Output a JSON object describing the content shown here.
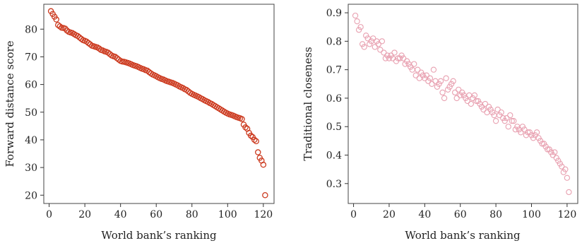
{
  "chart_data": [
    {
      "type": "scatter",
      "xlabel": "World bank’s ranking",
      "ylabel": "Forward distance score",
      "xlim": [
        -3,
        126
      ],
      "ylim": [
        17,
        89
      ],
      "xticks": [
        0,
        20,
        40,
        60,
        80,
        100,
        120
      ],
      "yticks": [
        20,
        30,
        40,
        50,
        60,
        70,
        80
      ],
      "color": "#cc3a1f",
      "grid": false,
      "legend": "none",
      "series": [
        {
          "x": [
            1,
            2,
            3,
            4,
            5,
            6,
            7,
            8,
            9,
            10,
            11,
            12,
            13,
            14,
            15,
            16,
            17,
            18,
            19,
            20,
            21,
            22,
            23,
            24,
            25,
            26,
            27,
            28,
            29,
            30,
            31,
            32,
            33,
            34,
            35,
            36,
            37,
            38,
            39,
            40,
            41,
            42,
            43,
            44,
            45,
            46,
            47,
            48,
            49,
            50,
            51,
            52,
            53,
            54,
            55,
            56,
            57,
            58,
            59,
            60,
            61,
            62,
            63,
            64,
            65,
            66,
            67,
            68,
            69,
            70,
            71,
            72,
            73,
            74,
            75,
            76,
            77,
            78,
            79,
            80,
            81,
            82,
            83,
            84,
            85,
            86,
            87,
            88,
            89,
            90,
            91,
            92,
            93,
            94,
            95,
            96,
            97,
            98,
            99,
            100,
            101,
            102,
            103,
            104,
            105,
            106,
            107,
            108,
            109,
            110,
            111,
            112,
            113,
            114,
            115,
            116,
            117,
            118,
            119,
            120,
            121
          ],
          "y": [
            86.5,
            85.5,
            84.5,
            83.5,
            81.5,
            81,
            80.5,
            80.4,
            80.2,
            79.5,
            79,
            78.8,
            78.6,
            78.2,
            77.8,
            77.5,
            77,
            76.5,
            76,
            75.8,
            75.5,
            75,
            74.5,
            74,
            73.8,
            73.6,
            73.4,
            73,
            72.5,
            72.3,
            72,
            71.8,
            71.5,
            71,
            70.5,
            70.2,
            70,
            69.5,
            69,
            68.5,
            68.3,
            68.2,
            68,
            67.8,
            67.6,
            67.3,
            67,
            66.8,
            66.6,
            66.3,
            66,
            65.7,
            65.5,
            65.2,
            65,
            64.5,
            64,
            63.6,
            63.3,
            63,
            62.6,
            62.3,
            62,
            61.8,
            61.5,
            61.2,
            61,
            60.8,
            60.6,
            60.3,
            60,
            59.7,
            59.3,
            59,
            58.7,
            58.3,
            58,
            57.5,
            57,
            56.6,
            56.3,
            56,
            55.7,
            55.4,
            55,
            54.7,
            54.3,
            54,
            53.7,
            53.3,
            53,
            52.6,
            52.2,
            51.8,
            51.4,
            51,
            50.6,
            50.2,
            49.8,
            49.5,
            49.2,
            49,
            48.8,
            48.5,
            48.2,
            48,
            47.8,
            47.5,
            45.5,
            44.5,
            44,
            42.5,
            41.5,
            41,
            40,
            39.5,
            35.5,
            33.5,
            32.5,
            31,
            20
          ]
        }
      ]
    },
    {
      "type": "scatter",
      "xlabel": "World bank’s ranking",
      "ylabel": "Traditional closeness",
      "xlim": [
        -3,
        126
      ],
      "ylim": [
        0.23,
        0.93
      ],
      "xticks": [
        0,
        20,
        40,
        60,
        80,
        100,
        120
      ],
      "yticks": [
        0.3,
        0.4,
        0.5,
        0.6,
        0.7,
        0.8,
        0.9
      ],
      "ytick_labels": [
        "0.3",
        "0.4",
        "0.5",
        "0.6",
        "0.7",
        "0.8",
        "0.9"
      ],
      "color": "#e8a0b0",
      "grid": false,
      "legend": "none",
      "series": [
        {
          "x": [
            1,
            2,
            3,
            4,
            5,
            6,
            7,
            8,
            9,
            10,
            11,
            12,
            13,
            14,
            15,
            16,
            17,
            18,
            19,
            20,
            21,
            22,
            23,
            24,
            25,
            26,
            27,
            28,
            29,
            30,
            31,
            32,
            33,
            34,
            35,
            36,
            37,
            38,
            39,
            40,
            41,
            42,
            43,
            44,
            45,
            46,
            47,
            48,
            49,
            50,
            51,
            52,
            53,
            54,
            55,
            56,
            57,
            58,
            59,
            60,
            61,
            62,
            63,
            64,
            65,
            66,
            67,
            68,
            69,
            70,
            71,
            72,
            73,
            74,
            75,
            76,
            77,
            78,
            79,
            80,
            81,
            82,
            83,
            84,
            85,
            86,
            87,
            88,
            89,
            90,
            91,
            92,
            93,
            94,
            95,
            96,
            97,
            98,
            99,
            100,
            101,
            102,
            103,
            104,
            105,
            106,
            107,
            108,
            109,
            110,
            111,
            112,
            113,
            114,
            115,
            116,
            117,
            118,
            119,
            120,
            121
          ],
          "y": [
            0.89,
            0.87,
            0.84,
            0.85,
            0.79,
            0.78,
            0.82,
            0.81,
            0.79,
            0.8,
            0.81,
            0.78,
            0.8,
            0.79,
            0.77,
            0.8,
            0.76,
            0.74,
            0.75,
            0.74,
            0.75,
            0.74,
            0.76,
            0.73,
            0.74,
            0.74,
            0.75,
            0.74,
            0.72,
            0.73,
            0.72,
            0.71,
            0.7,
            0.72,
            0.68,
            0.7,
            0.67,
            0.69,
            0.68,
            0.67,
            0.68,
            0.66,
            0.67,
            0.65,
            0.7,
            0.66,
            0.64,
            0.65,
            0.66,
            0.62,
            0.6,
            0.67,
            0.63,
            0.64,
            0.65,
            0.66,
            0.62,
            0.6,
            0.63,
            0.61,
            0.62,
            0.61,
            0.6,
            0.59,
            0.61,
            0.58,
            0.6,
            0.61,
            0.59,
            0.59,
            0.58,
            0.57,
            0.56,
            0.58,
            0.55,
            0.57,
            0.56,
            0.55,
            0.54,
            0.52,
            0.56,
            0.54,
            0.55,
            0.53,
            0.52,
            0.53,
            0.5,
            0.54,
            0.52,
            0.52,
            0.49,
            0.5,
            0.49,
            0.48,
            0.5,
            0.49,
            0.47,
            0.48,
            0.48,
            0.47,
            0.46,
            0.47,
            0.48,
            0.46,
            0.45,
            0.44,
            0.44,
            0.43,
            0.42,
            0.42,
            0.41,
            0.4,
            0.41,
            0.39,
            0.38,
            0.37,
            0.36,
            0.34,
            0.35,
            0.32,
            0.27
          ]
        }
      ]
    }
  ]
}
